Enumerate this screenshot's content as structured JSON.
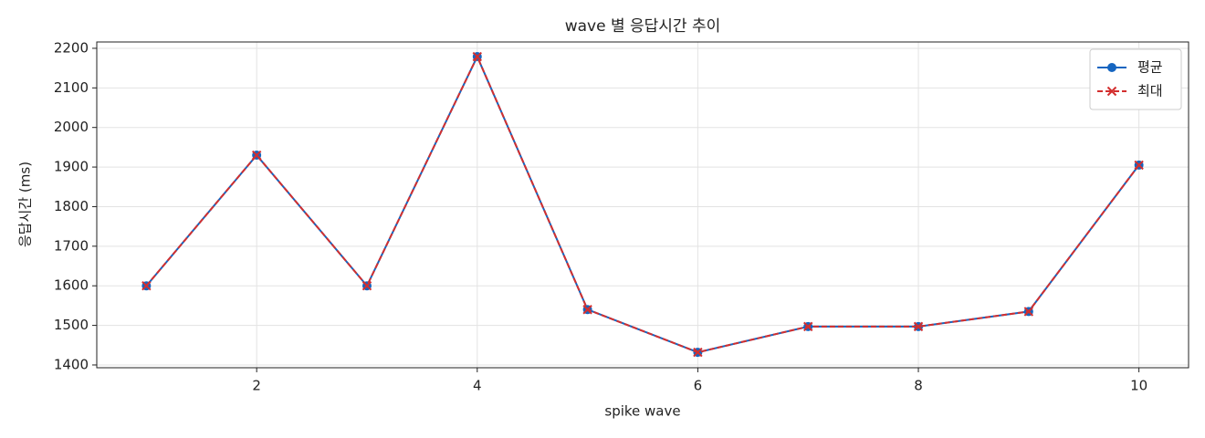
{
  "chart_data": {
    "type": "line",
    "title": "wave 별 응답시간 추이",
    "x_label": "spike wave",
    "y_label": "응답시간 (ms)",
    "x": [
      1,
      2,
      3,
      4,
      5,
      6,
      7,
      8,
      9,
      10
    ],
    "series": [
      {
        "name": "평균",
        "color": "#1565c0",
        "linestyle": "solid",
        "marker": "o",
        "values": [
          1600,
          1930,
          1600,
          2179,
          1540,
          1432,
          1497,
          1497,
          1535,
          1905
        ]
      },
      {
        "name": "최대",
        "color": "#d32f2f",
        "linestyle": "dashed",
        "marker": "x",
        "values": [
          1600,
          1930,
          1600,
          2179,
          1540,
          1432,
          1497,
          1497,
          1535,
          1905
        ]
      }
    ],
    "xlim": [
      0.55,
      10.45
    ],
    "xticks": [
      2,
      4,
      6,
      8,
      10
    ],
    "ylim": [
      1393,
      2216
    ],
    "yticks": [
      1400,
      1500,
      1600,
      1700,
      1800,
      1900,
      2000,
      2100,
      2200
    ],
    "grid": true,
    "legend": "upper right"
  }
}
